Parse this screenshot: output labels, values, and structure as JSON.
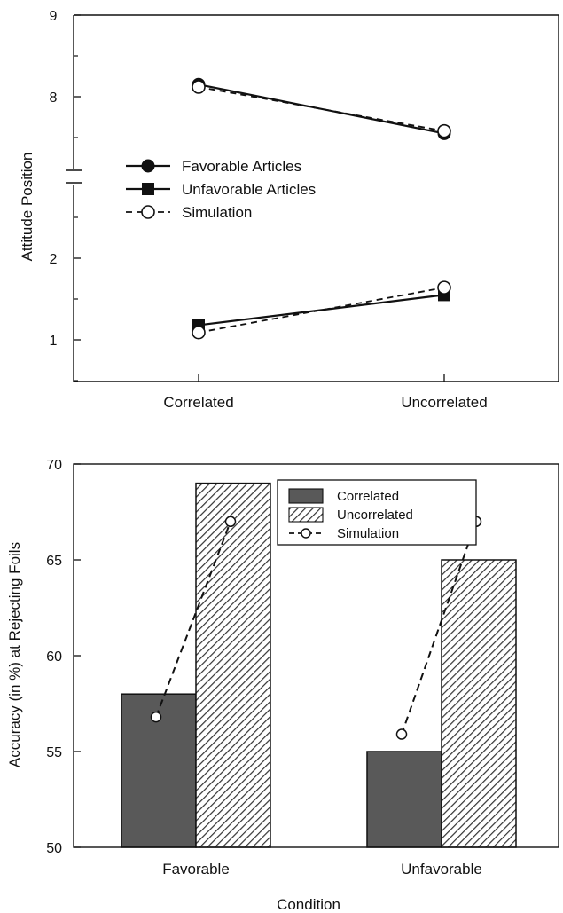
{
  "chart_data": [
    {
      "type": "line",
      "ylabel": "Attitude Position",
      "categories": [
        "Correlated",
        "Uncorrelated"
      ],
      "yticks": [
        {
          "label": "9",
          "value": 9
        },
        {
          "label": "8",
          "value": 8
        },
        {
          "label": "2",
          "value": 2
        },
        {
          "label": "1",
          "value": 1
        }
      ],
      "axis_break": true,
      "upper_ylim": [
        7,
        9
      ],
      "lower_ylim": [
        0.5,
        3
      ],
      "legend": {
        "placement": "center-left",
        "entries": [
          {
            "key": "favorable",
            "label": "Favorable Articles",
            "marker": "filled-circle",
            "line": "solid"
          },
          {
            "key": "unfavorable",
            "label": "Unfavorable Articles",
            "marker": "filled-square",
            "line": "solid"
          },
          {
            "key": "simulation",
            "label": "Simulation",
            "marker": "open-circle",
            "line": "dashed"
          }
        ]
      },
      "series": [
        {
          "name": "Favorable Articles",
          "panel": "upper",
          "marker": "filled-circle",
          "line": "solid",
          "values": [
            8.15,
            7.55
          ]
        },
        {
          "name": "Unfavorable Articles",
          "panel": "lower",
          "marker": "filled-square",
          "line": "solid",
          "values": [
            1.18,
            1.55
          ]
        },
        {
          "name": "Simulation",
          "panel": "upper",
          "marker": "open-circle",
          "line": "dashed",
          "values": [
            8.12,
            7.58
          ]
        },
        {
          "name": "Simulation",
          "panel": "lower",
          "marker": "open-circle",
          "line": "dashed",
          "values": [
            1.09,
            1.64
          ]
        }
      ]
    },
    {
      "type": "bar",
      "xlabel": "Condition",
      "ylabel": "Accuracy (in %) at Rejecting Foils",
      "categories": [
        "Favorable",
        "Unfavorable"
      ],
      "ylim": [
        50,
        70
      ],
      "yticks": [
        50,
        55,
        60,
        65,
        70
      ],
      "legend": {
        "placement": "top-right",
        "entries": [
          {
            "label": "Correlated",
            "style": "solid-dark"
          },
          {
            "label": "Uncorrelated",
            "style": "hatched"
          },
          {
            "label": "Simulation",
            "style": "dashed-open-circle"
          }
        ]
      },
      "series": [
        {
          "name": "Correlated",
          "values": [
            58,
            55
          ],
          "color": "#595959"
        },
        {
          "name": "Uncorrelated",
          "values": [
            69,
            65
          ],
          "pattern": "diagonal-hatch"
        },
        {
          "name": "Simulation",
          "type": "line",
          "points": [
            {
              "category": "Favorable",
              "bar": "Correlated",
              "value": 56.8
            },
            {
              "category": "Favorable",
              "bar": "Uncorrelated",
              "value": 67
            },
            {
              "category": "Unfavorable",
              "bar": "Correlated",
              "value": 55.9
            },
            {
              "category": "Unfavorable",
              "bar": "Uncorrelated",
              "value": 67
            }
          ]
        }
      ]
    }
  ]
}
